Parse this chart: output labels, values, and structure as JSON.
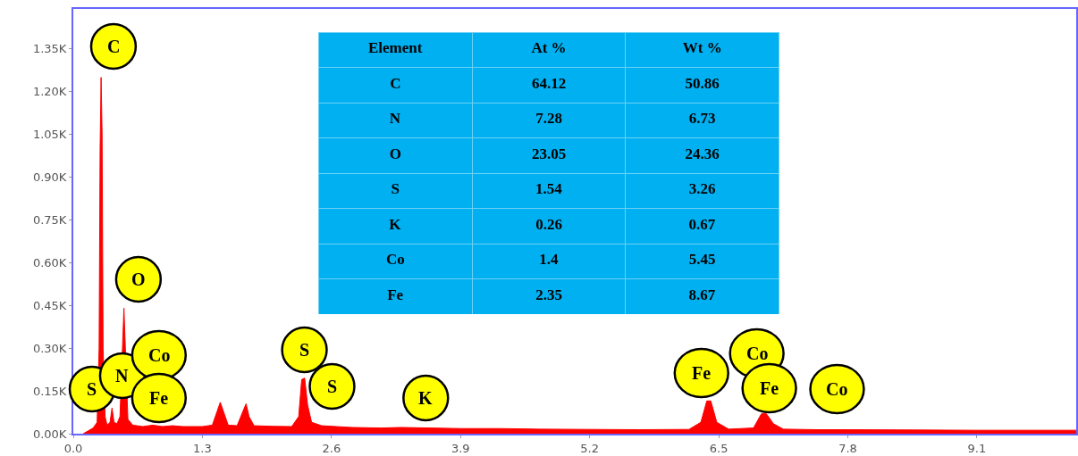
{
  "chart_data": {
    "type": "area",
    "x": [
      0.1,
      0.15,
      0.2,
      0.24,
      0.26,
      0.27,
      0.28,
      0.29,
      0.3,
      0.32,
      0.34,
      0.37,
      0.39,
      0.41,
      0.44,
      0.47,
      0.51,
      0.55,
      0.6,
      0.7,
      0.8,
      0.9,
      1.0,
      1.1,
      1.2,
      1.3,
      1.4,
      1.45,
      1.48,
      1.52,
      1.56,
      1.65,
      1.71,
      1.74,
      1.77,
      1.82,
      2.0,
      2.2,
      2.27,
      2.3,
      2.33,
      2.36,
      2.4,
      2.5,
      2.8,
      3.1,
      3.3,
      3.6,
      3.9,
      4.3,
      4.7,
      5.2,
      5.7,
      6.2,
      6.32,
      6.38,
      6.42,
      6.48,
      6.6,
      6.85,
      6.93,
      6.98,
      7.05,
      7.15,
      7.5,
      7.8,
      8.5,
      9.1,
      10.1
    ],
    "series": [
      {
        "color": "#ff0000",
        "values": [
          0,
          10,
          20,
          40,
          300,
          1000,
          1250,
          1050,
          300,
          60,
          30,
          40,
          90,
          40,
          35,
          60,
          440,
          50,
          30,
          25,
          30,
          25,
          28,
          25,
          25,
          25,
          30,
          80,
          110,
          70,
          30,
          28,
          80,
          105,
          60,
          28,
          26,
          25,
          60,
          190,
          195,
          100,
          40,
          28,
          22,
          20,
          22,
          20,
          18,
          18,
          16,
          15,
          14,
          15,
          40,
          115,
          115,
          40,
          16,
          20,
          70,
          70,
          35,
          16,
          14,
          14,
          13,
          12,
          12
        ]
      }
    ],
    "xlim": [
      0,
      10.1
    ],
    "ylim": [
      0,
      1490
    ],
    "xticks": [
      {
        "value": 0,
        "label": "0.0"
      },
      1.3,
      2.6,
      3.9,
      5.2,
      6.5,
      7.8,
      9.1
    ],
    "yticks": [
      {
        "value": 0,
        "label": "0.00K"
      },
      {
        "value": 150,
        "label": "0.15K"
      },
      {
        "value": 300,
        "label": "0.30K"
      },
      {
        "value": 450,
        "label": "0.45K"
      },
      {
        "value": 600,
        "label": "0.60K"
      },
      {
        "value": 750,
        "label": "0.75K"
      },
      {
        "value": 900,
        "label": "0.90K"
      },
      {
        "value": 1050,
        "label": "1.05K"
      },
      {
        "value": 1200,
        "label": "1.20K"
      },
      {
        "value": 1350,
        "label": "1.35K"
      }
    ],
    "annotations": [
      "C",
      "O",
      "S",
      "N",
      "Co",
      "Fe",
      "S",
      "S",
      "K",
      "Fe",
      "Co",
      "Fe",
      "Co",
      "Element",
      "At %",
      "Wt %",
      "C",
      "64.12",
      "50.86",
      "N",
      "7.28",
      "6.73",
      "O",
      "23.05",
      "24.36",
      "S",
      "1.54",
      "3.26",
      "K",
      "0.26",
      "0.67",
      "Co",
      "1.4",
      "5.45",
      "Fe",
      "2.35",
      "8.67"
    ]
  }
}
